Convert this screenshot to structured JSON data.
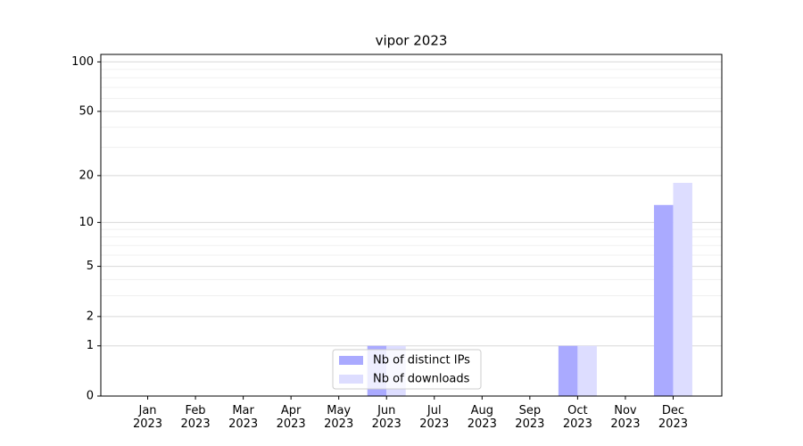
{
  "chart_data": {
    "type": "bar",
    "title": "vipor 2023",
    "categories": [
      "Jan\n2023",
      "Feb\n2023",
      "Mar\n2023",
      "Apr\n2023",
      "May\n2023",
      "Jun\n2023",
      "Jul\n2023",
      "Aug\n2023",
      "Sep\n2023",
      "Oct\n2023",
      "Nov\n2023",
      "Dec\n2023"
    ],
    "series": [
      {
        "name": "Nb of distinct IPs",
        "color": "#aaaaff",
        "values": [
          0,
          0,
          0,
          0,
          0,
          1,
          0,
          0,
          0,
          1,
          0,
          13
        ]
      },
      {
        "name": "Nb of downloads",
        "color": "#ddddff",
        "values": [
          0,
          0,
          0,
          0,
          0,
          1,
          0,
          0,
          0,
          1,
          0,
          18
        ]
      }
    ],
    "yscale": "log1p",
    "ylim": [
      0,
      111
    ],
    "yticks": [
      0,
      1,
      2,
      5,
      10,
      20,
      50,
      100
    ],
    "yminorticks": [
      3,
      4,
      6,
      7,
      8,
      9,
      30,
      40,
      60,
      70,
      80,
      90
    ],
    "grid": true,
    "legend": "lower center"
  }
}
